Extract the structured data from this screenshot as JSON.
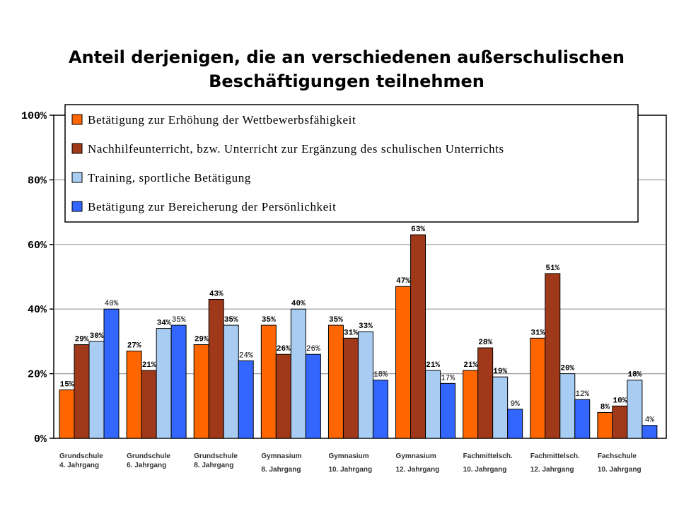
{
  "title": {
    "line1": "Anteil derjenigen, die an verschiedenen außerschulischen",
    "line2": "Beschäftigungen teilnehmen"
  },
  "chart_data": {
    "type": "bar",
    "title": "Anteil derjenigen, die an verschiedenen außerschulischen Beschäftigungen teilnehmen",
    "ylim": [
      0,
      100
    ],
    "yticks": [
      0,
      20,
      40,
      60,
      80,
      100
    ],
    "ytick_labels": [
      "0%",
      "20%",
      "40%",
      "60%",
      "80%",
      "100%"
    ],
    "grid": true,
    "legend_position": "top",
    "categories": [
      [
        "Grundschule",
        "4. Jahrgang"
      ],
      [
        "Grundschule",
        "6. Jahrgang"
      ],
      [
        "Grundschule",
        "8. Jahrgang"
      ],
      [
        "Gymnasium",
        "8. Jahrgang"
      ],
      [
        "Gymnasium",
        "10. Jahrgang"
      ],
      [
        "Gymnasium",
        "12. Jahrgang"
      ],
      [
        "Fachmittelsch.",
        "10. Jahrgang"
      ],
      [
        "Fachmittelsch.",
        "12. Jahrgang"
      ],
      [
        "Fachschule",
        "10. Jahrgang"
      ]
    ],
    "series": [
      {
        "name": "Betätigung zur Erhöhung der Wettbewerbsfähigkeit",
        "color": "#ff6600",
        "values": [
          15,
          27,
          29,
          35,
          35,
          47,
          21,
          31,
          8
        ]
      },
      {
        "name": "Nachhilfeunterricht, bzw. Unterricht zur Ergänzung des schulischen Unterrichts",
        "color": "#a0391a",
        "values": [
          29,
          21,
          43,
          26,
          31,
          63,
          28,
          51,
          10
        ]
      },
      {
        "name": "Training, sportliche Betätigung",
        "color": "#a9cdf2",
        "values": [
          30,
          34,
          35,
          40,
          33,
          21,
          19,
          20,
          18
        ]
      },
      {
        "name": "Betätigung zur Bereicherung der Persönlichkeit",
        "color": "#3366ff",
        "values": [
          40,
          35,
          24,
          26,
          18,
          17,
          9,
          12,
          4
        ]
      }
    ],
    "value_suffix": "%"
  }
}
